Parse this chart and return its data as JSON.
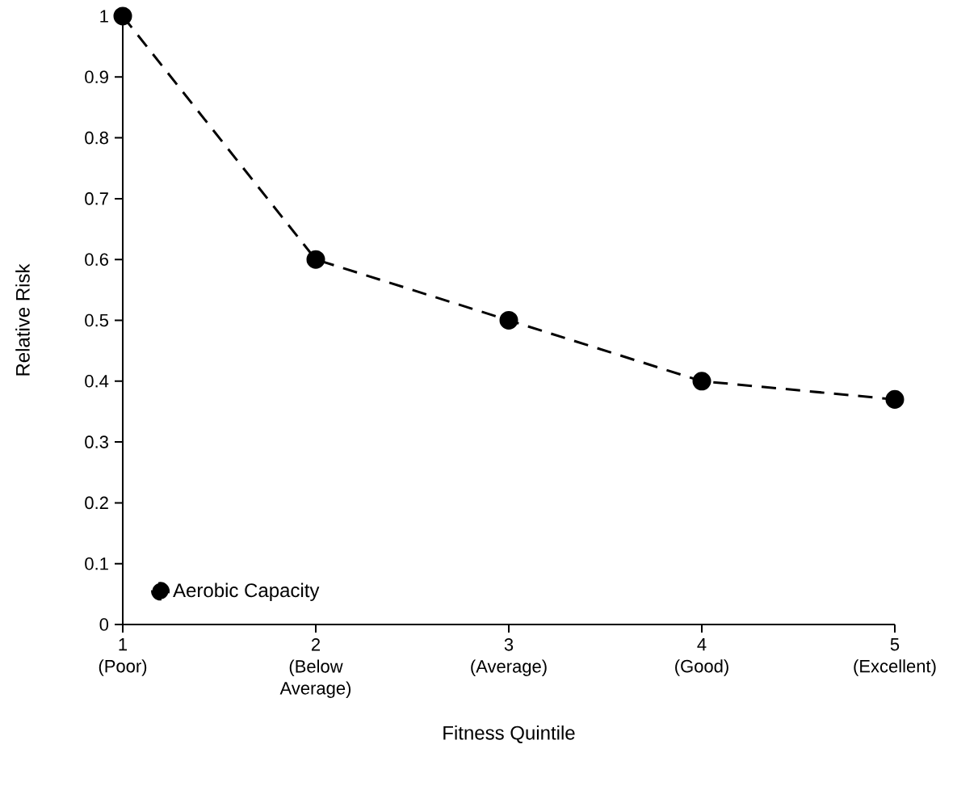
{
  "chart_data": {
    "type": "line",
    "xlabel": "Fitness Quintile",
    "ylabel": "Relative Risk",
    "categories": [
      "1 (Poor)",
      "2 (Below Average)",
      "3 (Average)",
      "4 (Good)",
      "5 (Excellent)"
    ],
    "series": [
      {
        "name": "Aerobic Capacity",
        "color": "#000000",
        "values": [
          1,
          0.6,
          0.5,
          0.4,
          0.37
        ]
      }
    ],
    "ylim": [
      0,
      1
    ],
    "yticks": [
      0,
      0.1,
      0.2,
      0.3,
      0.4,
      0.5,
      0.6,
      0.7,
      0.8,
      0.9,
      1
    ],
    "marker": "circle",
    "line_style": "dashed",
    "legend": "bottom left",
    "grid": false
  }
}
